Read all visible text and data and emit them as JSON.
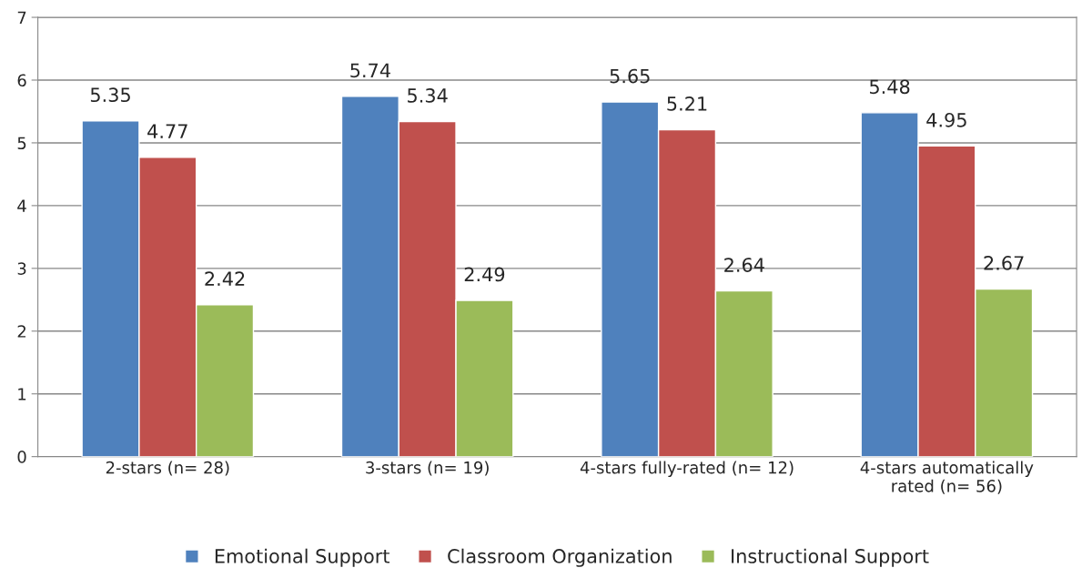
{
  "chart_data": {
    "type": "bar",
    "categories": [
      "2-stars (n= 28)",
      "3-stars (n= 19)",
      "4-stars fully-rated (n= 12)",
      "4-stars automatically\nrated (n= 56)"
    ],
    "series": [
      {
        "name": "Emotional Support",
        "color": "#4f81bd",
        "values": [
          5.35,
          5.74,
          5.65,
          5.48
        ]
      },
      {
        "name": "Classroom Organization",
        "color": "#c0504d",
        "values": [
          4.77,
          5.34,
          5.21,
          4.95
        ]
      },
      {
        "name": "Instructional Support",
        "color": "#9bbb59",
        "values": [
          2.42,
          2.49,
          2.64,
          2.67
        ]
      }
    ],
    "ylim": [
      0,
      7
    ],
    "yticks": [
      0,
      1,
      2,
      3,
      4,
      5,
      6,
      7
    ],
    "grid": "y",
    "legend": "bottom",
    "data_labels": true
  }
}
